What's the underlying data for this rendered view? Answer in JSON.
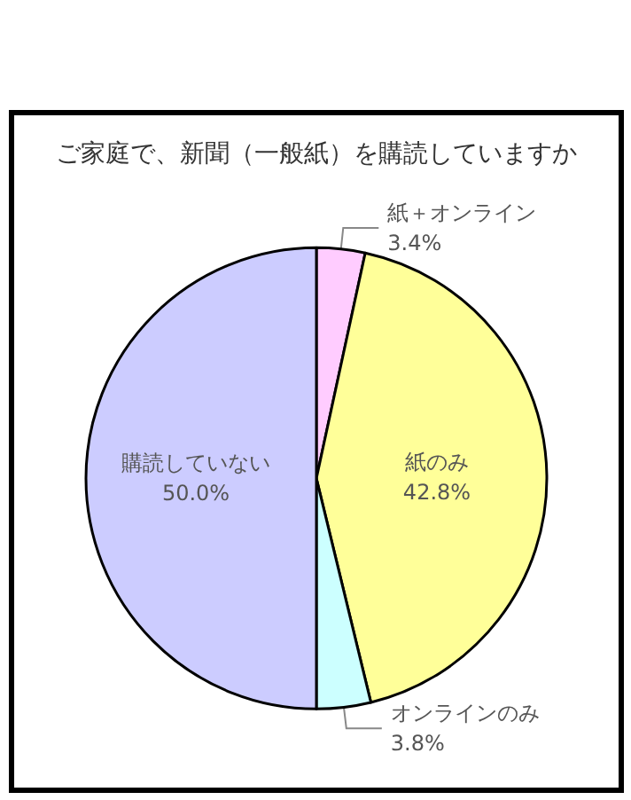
{
  "chart_data": {
    "type": "pie",
    "title": "ご家庭で、新聞（一般紙）を購読していますか",
    "categories": [
      "紙＋オンライン",
      "紙のみ",
      "オンラインのみ",
      "購読していない"
    ],
    "values": [
      3.4,
      42.8,
      3.8,
      50.0
    ],
    "colors": [
      "#ffccff",
      "#ffff99",
      "#ccffff",
      "#ccccff"
    ],
    "value_labels": [
      "3.4%",
      "42.8%",
      "3.8%",
      "50.0%"
    ]
  }
}
